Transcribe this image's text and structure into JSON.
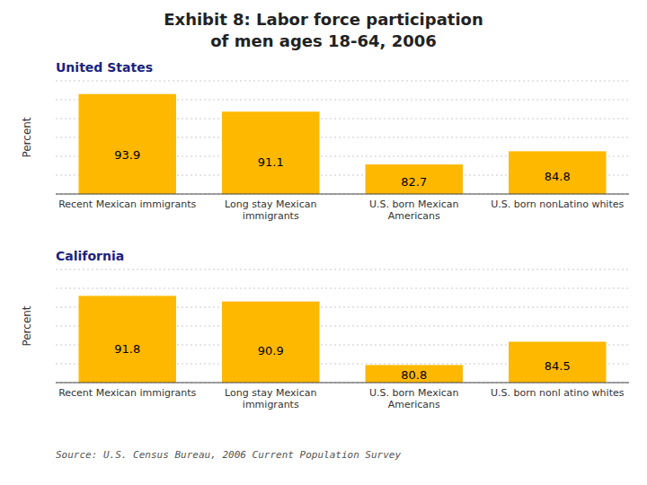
{
  "chart_data": [
    {
      "type": "bar",
      "title": "Exhibit 8: Labor force participation",
      "subtitle": "of men ages 18-64, 2006",
      "annotations": [
        "United States"
      ],
      "categories": [
        "Recent Mexican immigrants",
        "Long stay Mexican\nimmigrants",
        "U.S. born Mexican\nAmericans",
        "U.S. born nonLatino whites"
      ],
      "values": [
        93.9,
        91.1,
        82.7,
        84.8
      ],
      "color": "#FFB800",
      "y_label": "Percent",
      "ylim": [
        78,
        96
      ],
      "yticks": [
        78,
        81,
        84,
        87,
        90,
        93,
        96
      ],
      "grid": true,
      "tick_labels": "x",
      "data_labels": true
    },
    {
      "type": "bar",
      "annotations": [
        "California",
        "Source: U.S. Census Bureau, 2006 Current Population Survey"
      ],
      "categories": [
        "Recent Mexican immigrants",
        "Long stay Mexican\nimmigrants",
        "U.S. born Mexican\nAmericans",
        "U.S. born nonl atino whites"
      ],
      "values": [
        91.8,
        90.9,
        80.8,
        84.5
      ],
      "color": "#FFB800",
      "y_label": "Percent",
      "ylim": [
        78,
        96
      ],
      "yticks": [
        78,
        81,
        84,
        87,
        90,
        93,
        96
      ],
      "grid": true,
      "tick_labels": "x",
      "data_labels": true
    }
  ]
}
